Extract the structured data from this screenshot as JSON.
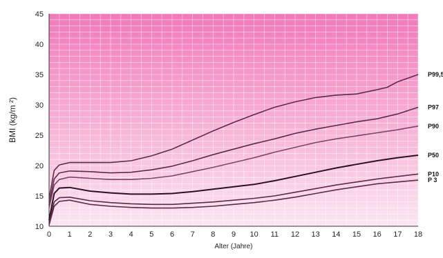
{
  "chart_data": {
    "type": "line",
    "title": "",
    "xlabel": "Alter (Jahre)",
    "ylabel": "BMI (kg/m ²)",
    "xlim": [
      0,
      18
    ],
    "ylim": [
      10,
      45
    ],
    "xticks": [
      0,
      1,
      2,
      3,
      4,
      5,
      6,
      7,
      8,
      9,
      10,
      11,
      12,
      13,
      14,
      15,
      16,
      17,
      18
    ],
    "yticks": [
      10,
      15,
      20,
      25,
      30,
      35,
      40,
      45
    ],
    "grid": true,
    "legend": "line-end labels right",
    "colors": {
      "background_top": "#f279b9",
      "background_bottom": "#fbe6f1",
      "grid": "#ffffff"
    },
    "series": [
      {
        "name": "P99,5",
        "color": "#5a2a4a",
        "x": [
          0,
          0.25,
          0.5,
          1,
          2,
          3,
          4,
          5,
          6,
          7,
          8,
          9,
          10,
          11,
          12,
          13,
          14,
          15,
          16,
          16.5,
          17,
          18
        ],
        "y": [
          14.5,
          19.2,
          20.1,
          20.5,
          20.5,
          20.5,
          20.8,
          21.6,
          22.7,
          24.2,
          25.7,
          27.1,
          28.4,
          29.6,
          30.5,
          31.2,
          31.6,
          31.8,
          32.5,
          32.9,
          33.8,
          35.0
        ]
      },
      {
        "name": "P97",
        "color": "#5a2a4a",
        "x": [
          0,
          0.25,
          0.5,
          1,
          2,
          3,
          4,
          5,
          6,
          7,
          8,
          9,
          10,
          11,
          12,
          13,
          14,
          15,
          16,
          17,
          18
        ],
        "y": [
          13.5,
          17.8,
          18.8,
          19.1,
          19.0,
          18.8,
          18.9,
          19.3,
          19.9,
          20.8,
          21.8,
          22.7,
          23.6,
          24.4,
          25.3,
          26.0,
          26.6,
          27.2,
          27.7,
          28.5,
          29.6
        ]
      },
      {
        "name": "P90",
        "color": "#7a4466",
        "x": [
          0,
          0.25,
          0.5,
          1,
          2,
          3,
          4,
          5,
          6,
          7,
          8,
          9,
          10,
          11,
          12,
          13,
          14,
          15,
          16,
          17,
          18
        ],
        "y": [
          13.0,
          16.8,
          17.7,
          18.1,
          17.9,
          17.7,
          17.7,
          17.9,
          18.3,
          19.0,
          19.7,
          20.5,
          21.3,
          22.2,
          23.0,
          23.8,
          24.4,
          24.9,
          25.4,
          25.9,
          26.5
        ]
      },
      {
        "name": "P50",
        "color": "#2a1024",
        "x": [
          0,
          0.25,
          0.5,
          1,
          2,
          3,
          4,
          5,
          6,
          7,
          8,
          9,
          10,
          11,
          12,
          13,
          14,
          15,
          16,
          17,
          18
        ],
        "y": [
          11.0,
          15.4,
          16.3,
          16.4,
          15.8,
          15.5,
          15.3,
          15.3,
          15.4,
          15.7,
          16.1,
          16.5,
          16.9,
          17.5,
          18.2,
          18.9,
          19.6,
          20.2,
          20.8,
          21.3,
          21.7
        ]
      },
      {
        "name": "P10",
        "color": "#5a2a4a",
        "x": [
          0,
          0.25,
          0.5,
          1,
          2,
          3,
          4,
          5,
          6,
          7,
          8,
          9,
          10,
          11,
          12,
          13,
          14,
          15,
          16,
          17,
          18
        ],
        "y": [
          10.5,
          14.0,
          14.7,
          14.8,
          14.2,
          13.9,
          13.7,
          13.6,
          13.6,
          13.8,
          14.0,
          14.3,
          14.6,
          15.0,
          15.6,
          16.2,
          16.8,
          17.3,
          17.8,
          18.2,
          18.6
        ]
      },
      {
        "name": "P 3",
        "color": "#5a2a4a",
        "x": [
          0,
          0.25,
          0.5,
          1,
          2,
          3,
          4,
          5,
          6,
          7,
          8,
          9,
          10,
          11,
          12,
          13,
          14,
          15,
          16,
          17,
          18
        ],
        "y": [
          10.2,
          13.3,
          14.1,
          14.3,
          13.6,
          13.3,
          13.1,
          13.0,
          13.0,
          13.1,
          13.3,
          13.6,
          13.9,
          14.3,
          14.8,
          15.4,
          16.0,
          16.5,
          17.0,
          17.3,
          17.6
        ]
      }
    ]
  }
}
